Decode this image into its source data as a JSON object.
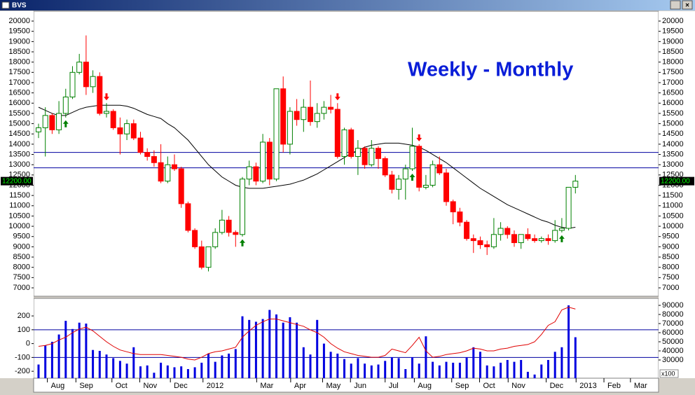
{
  "window_title": "BVS",
  "chart_data": {
    "type": "candlestick",
    "annotation": "Weekly - Monthly",
    "ylim": [
      6590,
      20480
    ],
    "yticks": [
      7000,
      7500,
      8000,
      8500,
      9000,
      9500,
      10000,
      10500,
      11000,
      11500,
      12000,
      12500,
      13000,
      13500,
      14000,
      14500,
      15000,
      15500,
      16000,
      16500,
      17000,
      17500,
      18000,
      18500,
      19000,
      19500,
      20000
    ],
    "up_color": "#008000",
    "down_color": "#ff0000",
    "ma_color": "#000000",
    "hline_color": "#0000a0",
    "hlines": [
      13600,
      12850
    ],
    "last_price": 12200,
    "last_price_label": "12200.00",
    "candles": [
      [
        14600,
        15000,
        14300,
        14800
      ],
      [
        14800,
        15800,
        13400,
        15400
      ],
      [
        15400,
        15500,
        14500,
        14700
      ],
      [
        14700,
        16100,
        14500,
        15500
      ],
      [
        15500,
        16700,
        15300,
        16300
      ],
      [
        16300,
        17800,
        16200,
        17500
      ],
      [
        17500,
        18400,
        17400,
        18000
      ],
      [
        18000,
        19300,
        16400,
        16800
      ],
      [
        16800,
        17600,
        16500,
        17300
      ],
      [
        17300,
        17500,
        15400,
        15500
      ],
      [
        15500,
        16000,
        15300,
        15600
      ],
      [
        15600,
        15700,
        14700,
        14800
      ],
      [
        14800,
        15300,
        13500,
        14500
      ],
      [
        14500,
        15200,
        14200,
        15000
      ],
      [
        15000,
        15200,
        14200,
        14300
      ],
      [
        14300,
        14600,
        13500,
        13600
      ],
      [
        13600,
        13800,
        13200,
        13400
      ],
      [
        13400,
        13700,
        12900,
        13100
      ],
      [
        13100,
        14000,
        12100,
        12200
      ],
      [
        12200,
        13400,
        12100,
        13000
      ],
      [
        13000,
        13500,
        12700,
        12800
      ],
      [
        12800,
        12900,
        10900,
        11100
      ],
      [
        11100,
        11200,
        9700,
        9800
      ],
      [
        9800,
        9900,
        8900,
        9000
      ],
      [
        9000,
        9300,
        7900,
        8000
      ],
      [
        8000,
        9000,
        7800,
        9000
      ],
      [
        9000,
        9900,
        8900,
        9700
      ],
      [
        9700,
        10800,
        9600,
        10300
      ],
      [
        10300,
        10500,
        9500,
        9700
      ],
      [
        9700,
        9800,
        9000,
        9600
      ],
      [
        9600,
        12400,
        9500,
        12300
      ],
      [
        12300,
        13200,
        12000,
        12900
      ],
      [
        12900,
        13100,
        12000,
        12200
      ],
      [
        12200,
        14500,
        12100,
        14100
      ],
      [
        14100,
        14300,
        12000,
        12300
      ],
      [
        12300,
        16700,
        12200,
        16700
      ],
      [
        16700,
        17300,
        13600,
        14000
      ],
      [
        14000,
        15800,
        13500,
        15600
      ],
      [
        15600,
        16200,
        14900,
        15200
      ],
      [
        15200,
        16200,
        14600,
        15800
      ],
      [
        15800,
        17100,
        14900,
        15100
      ],
      [
        15100,
        16000,
        14800,
        15500
      ],
      [
        15500,
        16100,
        15200,
        15800
      ],
      [
        15800,
        16400,
        15500,
        15700
      ],
      [
        15700,
        16000,
        13300,
        13400
      ],
      [
        13400,
        14800,
        13000,
        14700
      ],
      [
        14700,
        14800,
        13300,
        13400
      ],
      [
        13400,
        14200,
        12500,
        13800
      ],
      [
        13800,
        13900,
        12800,
        13000
      ],
      [
        13000,
        14200,
        12900,
        13800
      ],
      [
        13800,
        13900,
        12800,
        13300
      ],
      [
        13300,
        13400,
        12400,
        12500
      ],
      [
        12500,
        12700,
        11600,
        11800
      ],
      [
        11800,
        12500,
        11300,
        12300
      ],
      [
        12300,
        13000,
        11300,
        12800
      ],
      [
        12800,
        14800,
        12700,
        13900
      ],
      [
        13900,
        14000,
        11700,
        11900
      ],
      [
        11900,
        12500,
        11800,
        12000
      ],
      [
        12000,
        13200,
        11900,
        13000
      ],
      [
        13000,
        13400,
        12500,
        12600
      ],
      [
        12600,
        12800,
        11000,
        11200
      ],
      [
        11200,
        11300,
        10100,
        10700
      ],
      [
        10700,
        10900,
        10000,
        10200
      ],
      [
        10200,
        10300,
        9300,
        9400
      ],
      [
        9400,
        9600,
        8700,
        9300
      ],
      [
        9300,
        9500,
        8900,
        9100
      ],
      [
        9100,
        9300,
        8600,
        9000
      ],
      [
        9000,
        10400,
        8900,
        9600
      ],
      [
        9600,
        10200,
        9300,
        9900
      ],
      [
        9900,
        10000,
        9400,
        9600
      ],
      [
        9600,
        9800,
        9000,
        9200
      ],
      [
        9200,
        9600,
        8900,
        9600
      ],
      [
        9600,
        9900,
        9300,
        9400
      ],
      [
        9400,
        9600,
        9200,
        9300
      ],
      [
        9300,
        9500,
        9200,
        9400
      ],
      [
        9400,
        9600,
        9100,
        9300
      ],
      [
        9300,
        10300,
        9200,
        9800
      ],
      [
        9800,
        10400,
        9700,
        9900
      ],
      [
        9900,
        11900,
        9800,
        11900
      ],
      [
        11900,
        12500,
        11600,
        12200
      ]
    ],
    "moving_average": [
      15800,
      15650,
      15500,
      15400,
      15400,
      15550,
      15700,
      15800,
      15850,
      15900,
      15900,
      15900,
      15900,
      15850,
      15750,
      15600,
      15450,
      15350,
      15250,
      15000,
      14800,
      14500,
      14200,
      13800,
      13400,
      13000,
      12700,
      12400,
      12200,
      12000,
      11900,
      11850,
      11850,
      11850,
      11900,
      11950,
      12000,
      12050,
      12150,
      12250,
      12400,
      12550,
      12750,
      12950,
      13150,
      13350,
      13550,
      13700,
      13850,
      13950,
      14000,
      14050,
      14050,
      14050,
      14000,
      13950,
      13850,
      13700,
      13500,
      13300,
      13100,
      12850,
      12600,
      12350,
      12100,
      11850,
      11650,
      11450,
      11250,
      11050,
      10900,
      10750,
      10600,
      10450,
      10300,
      10200,
      10050,
      9950,
      9900,
      9950
    ],
    "signals": [
      {
        "type": "buy",
        "candle": 4
      },
      {
        "type": "sell",
        "candle": 10
      },
      {
        "type": "buy",
        "candle": 30
      },
      {
        "type": "sell",
        "candle": 44
      },
      {
        "type": "buy",
        "candle": 55
      },
      {
        "type": "sell",
        "candle": 56
      },
      {
        "type": "buy",
        "candle": 77
      }
    ],
    "xticks": [
      {
        "value": 1.3,
        "label": "Aug"
      },
      {
        "value": 5.5,
        "label": "Sep"
      },
      {
        "value": 10.8,
        "label": "Oct"
      },
      {
        "value": 14.9,
        "label": "Nov"
      },
      {
        "value": 19.4,
        "label": "Dec"
      },
      {
        "value": 24.2,
        "label": "2012"
      },
      {
        "value": 32.1,
        "label": "Mar"
      },
      {
        "value": 37.1,
        "label": "Apr"
      },
      {
        "value": 41.8,
        "label": "May"
      },
      {
        "value": 45.9,
        "label": "Jun"
      },
      {
        "value": 51.0,
        "label": "Jul"
      },
      {
        "value": 55.3,
        "label": "Aug"
      },
      {
        "value": 60.8,
        "label": "Sep"
      },
      {
        "value": 64.9,
        "label": "Oct"
      },
      {
        "value": 69.1,
        "label": "Nov"
      },
      {
        "value": 74.7,
        "label": "Dec"
      },
      {
        "value": 79.1,
        "label": "2013"
      },
      {
        "value": 83.2,
        "label": "Feb"
      },
      {
        "value": 87.1,
        "label": "Mar"
      }
    ],
    "lower": {
      "ylim": [
        -250,
        327
      ],
      "yticks": [
        -200,
        -100,
        0,
        100,
        200
      ],
      "hlines": [
        100,
        -100
      ],
      "y2lim": [
        10000,
        97700
      ],
      "y2ticks": [
        30000,
        40000,
        50000,
        60000,
        70000,
        80000,
        90000
      ],
      "y2_unit_label": "x100",
      "bar_color": "#0000e0",
      "avg_color": "#e00000",
      "volume": [
        25000,
        46000,
        50000,
        58000,
        73000,
        64000,
        71000,
        70000,
        41000,
        40000,
        36000,
        32000,
        29000,
        26000,
        44000,
        23000,
        24000,
        16000,
        27000,
        24000,
        22000,
        23000,
        20000,
        22000,
        27000,
        37000,
        28000,
        35000,
        37000,
        42000,
        78000,
        74000,
        72000,
        75000,
        85000,
        80000,
        71000,
        77000,
        71000,
        44000,
        36000,
        74000,
        48000,
        39000,
        37000,
        31000,
        26000,
        32000,
        26000,
        24000,
        25000,
        29000,
        33000,
        32000,
        20000,
        33000,
        26000,
        56000,
        28000,
        24000,
        28000,
        27000,
        27000,
        33000,
        44000,
        39000,
        24000,
        23000,
        27000,
        30000,
        28000,
        30000,
        17000,
        14000,
        25000,
        30000,
        39000,
        44000,
        90000,
        55000
      ],
      "volume_avg": [
        45000,
        46000,
        48000,
        52000,
        55000,
        60000,
        64000,
        66000,
        62000,
        56000,
        50000,
        45000,
        41000,
        39000,
        37000,
        36000,
        36000,
        36000,
        36000,
        35000,
        34000,
        33000,
        31000,
        30000,
        33000,
        37000,
        39000,
        40000,
        42000,
        44000,
        55000,
        62000,
        68000,
        72000,
        75000,
        75000,
        73000,
        71000,
        69000,
        67000,
        63000,
        60000,
        55000,
        48000,
        43000,
        39000,
        37000,
        35000,
        34000,
        33000,
        33000,
        35000,
        42000,
        40000,
        38000,
        46000,
        55000,
        40000,
        33000,
        34000,
        36000,
        37000,
        38000,
        40000,
        43000,
        42000,
        40000,
        40000,
        42000,
        43000,
        45000,
        46000,
        47000,
        50000,
        58000,
        68000,
        72000,
        85000,
        88000,
        86000
      ]
    }
  }
}
